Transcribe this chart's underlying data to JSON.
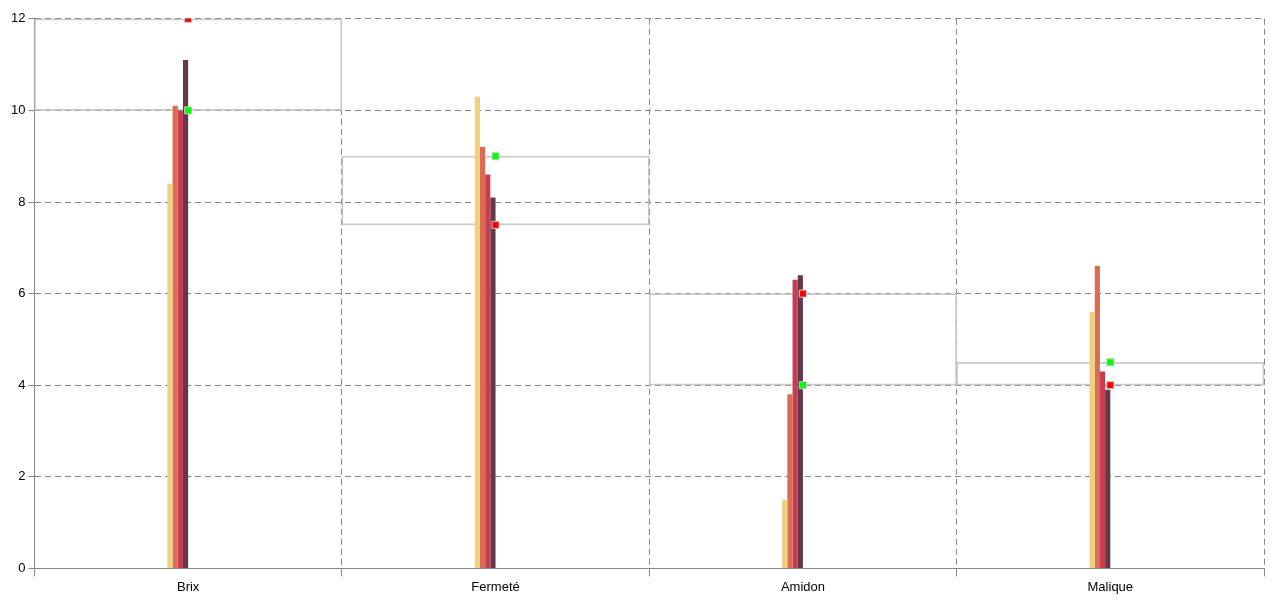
{
  "chart_data": {
    "type": "bar",
    "categories": [
      "Brix",
      "Fermeté",
      "Amidon",
      "Malique"
    ],
    "series": [
      {
        "color": "#ecd27e",
        "values": [
          8.4,
          10.3,
          1.5,
          5.6
        ]
      },
      {
        "color": "#dd6a52",
        "values": [
          10.1,
          9.2,
          3.8,
          6.6
        ]
      },
      {
        "color": "#c43d53",
        "values": [
          10.0,
          8.6,
          6.3,
          4.3
        ]
      },
      {
        "color": "#66364b",
        "values": [
          11.1,
          8.1,
          6.4,
          3.9
        ]
      },
      {
        "type": "bar",
        "color": "#c8c8c8",
        "base": [
          10,
          7.5,
          4,
          4
        ],
        "values": [
          2,
          1.5,
          2,
          0.5
        ]
      },
      {
        "type": "scatter",
        "color": "#00ff00",
        "x": [
          "Brix",
          "Fermeté",
          "Amidon",
          "Malique"
        ],
        "values": [
          10,
          9,
          4,
          4.5
        ]
      },
      {
        "type": "scatter",
        "color": "#ff0000",
        "x": [
          "Brix",
          "Fermeté",
          "Amidon",
          "Malique"
        ],
        "values": [
          12,
          7.5,
          6,
          4
        ]
      }
    ],
    "ylim": [
      0,
      12
    ],
    "yticks": [
      0,
      2,
      4,
      6,
      8,
      10,
      12
    ],
    "grid": true,
    "legend": false,
    "marker": "square"
  }
}
